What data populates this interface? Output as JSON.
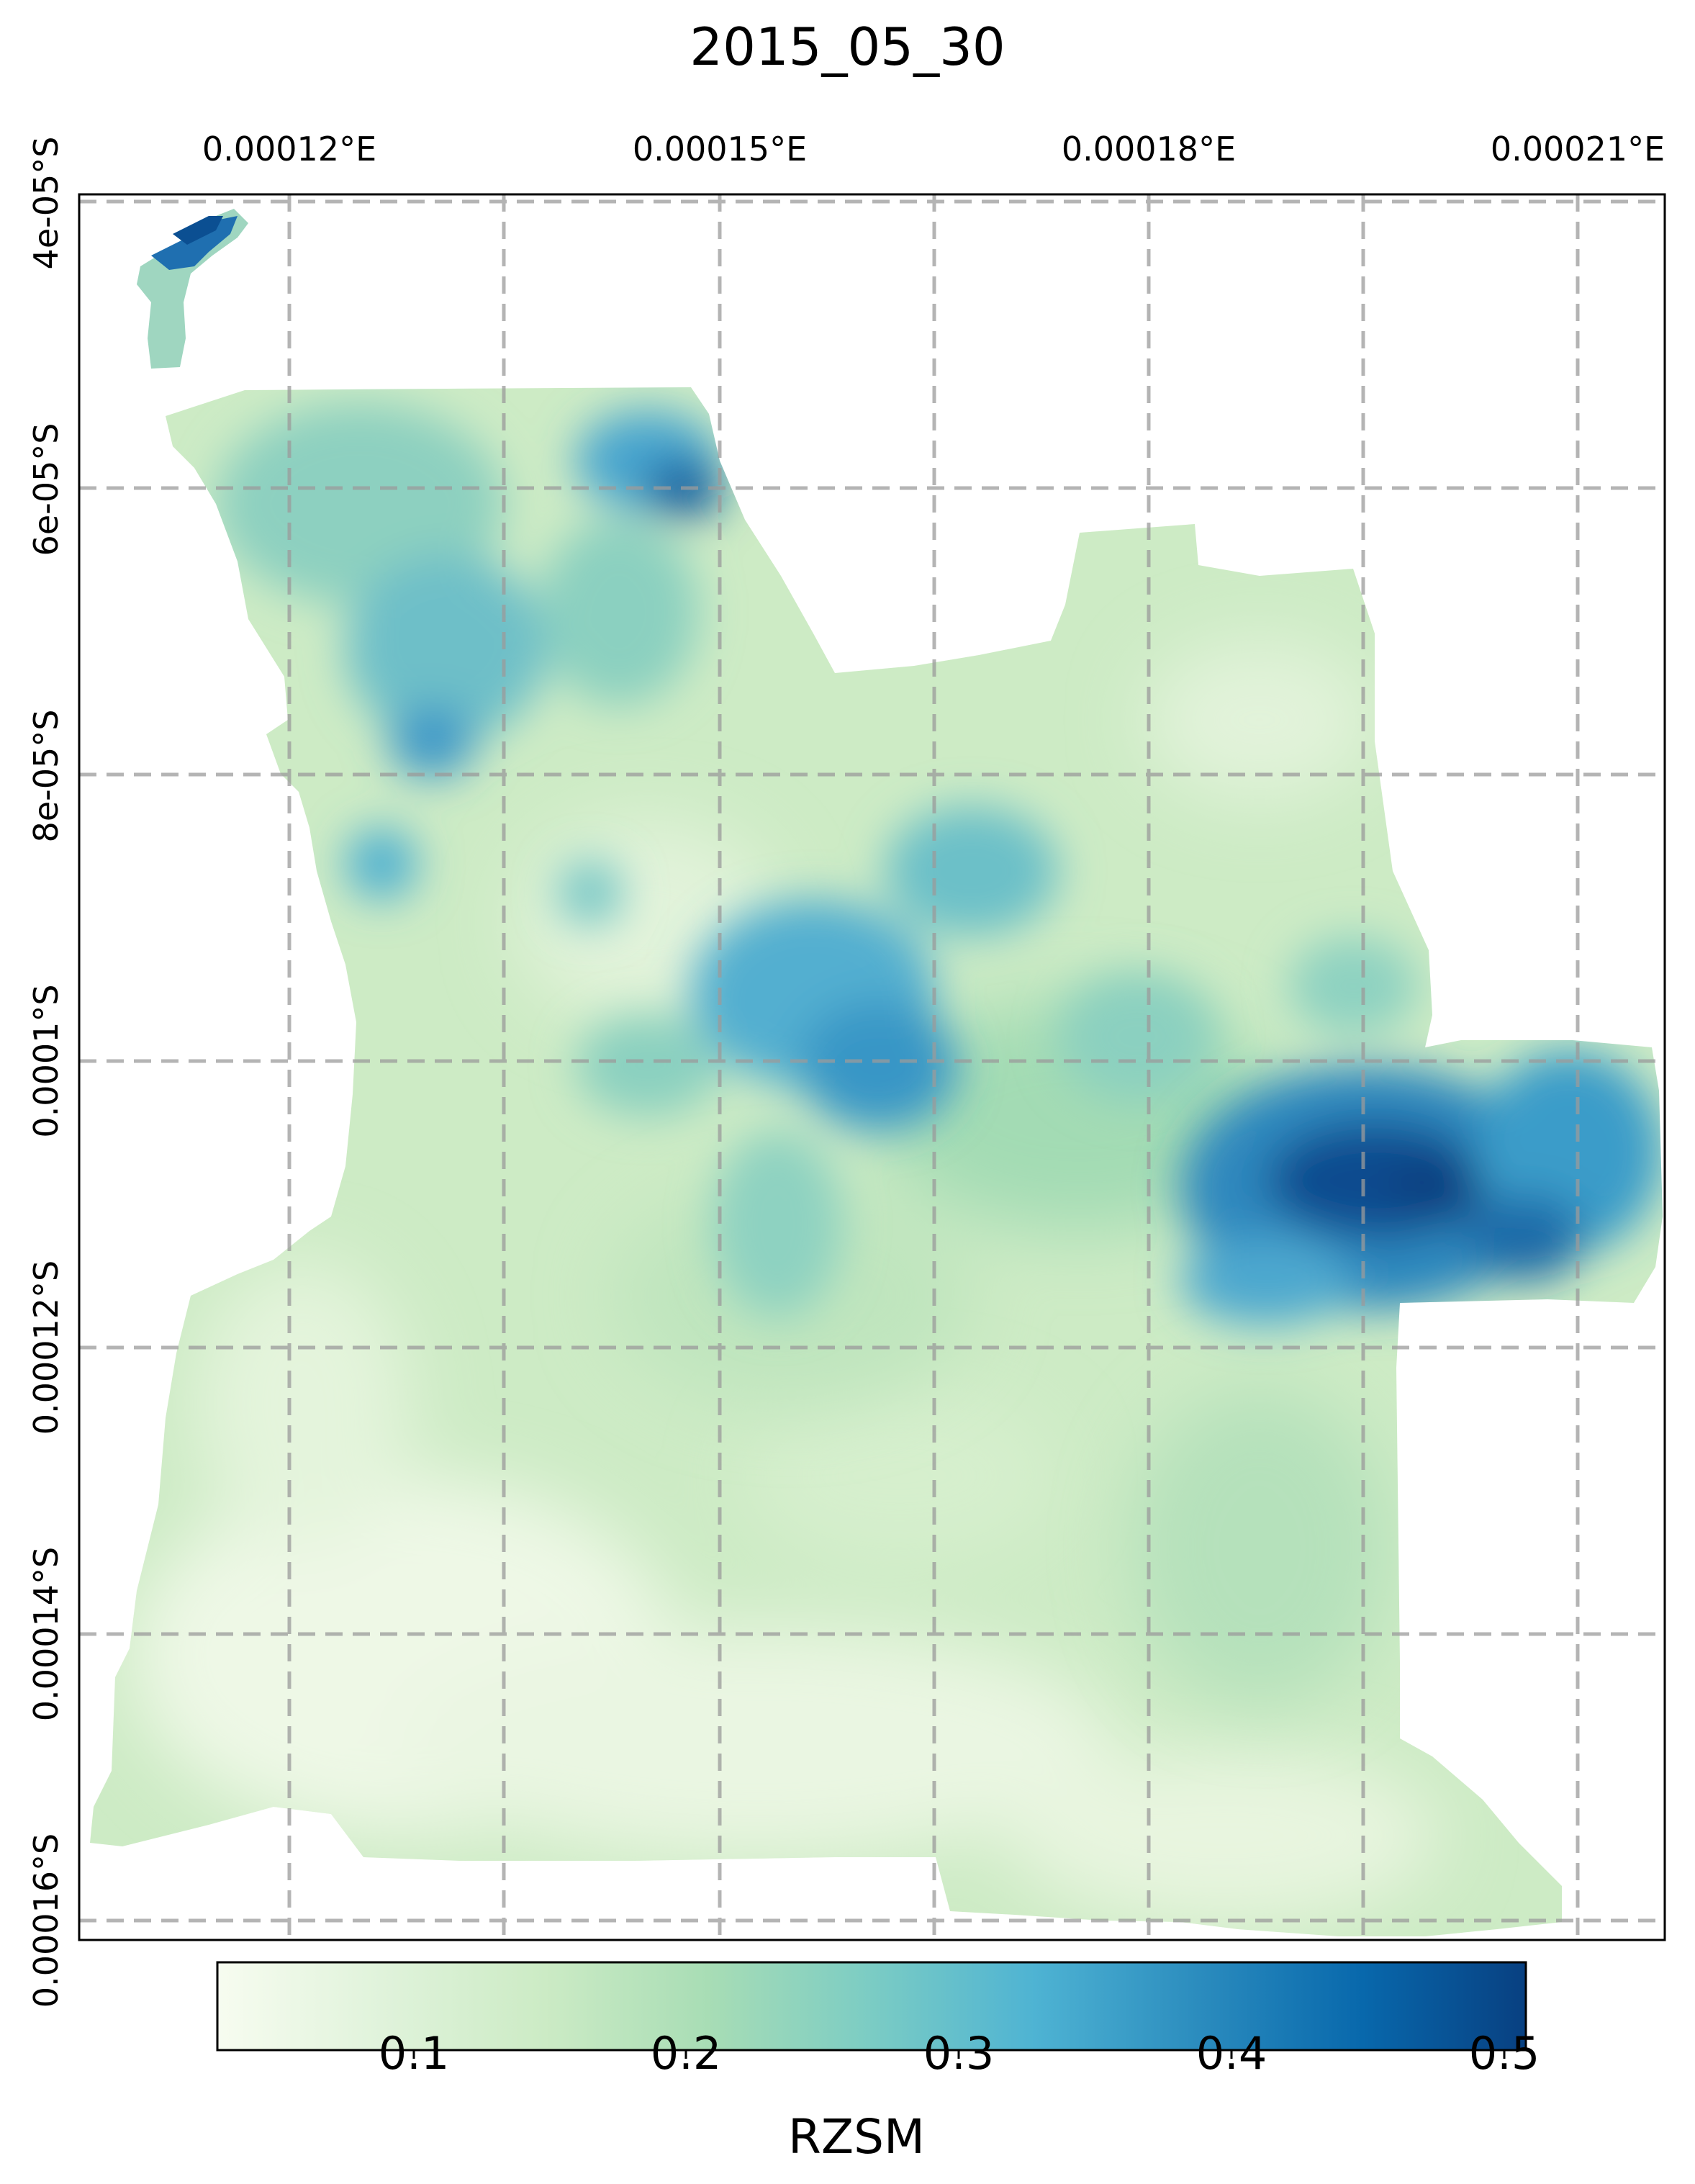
{
  "title": "2015_05_30",
  "map": {
    "x_ticks": [
      "0.00012°E",
      "0.00015°E",
      "0.00018°E",
      "0.00021°E"
    ],
    "y_ticks": [
      "4e-05°S",
      "6e-05°S",
      "8e-05°S",
      "0.0001°S",
      "0.00012°S",
      "0.00014°S",
      "0.00016°S"
    ],
    "gridlines": true,
    "region_fill_color": "#cdebc5",
    "high_moisture_color": "#084081",
    "colormap": [
      "#f7fcf0",
      "#e0f3db",
      "#ccebc5",
      "#a8ddb5",
      "#7bccc4",
      "#4eb3d3",
      "#2b8cbe",
      "#0868ac",
      "#084081"
    ]
  },
  "colorbar": {
    "label": "RZSM",
    "ticks": [
      "0.1",
      "0.2",
      "0.3",
      "0.4",
      "0.5"
    ],
    "range": [
      0.03,
      0.51
    ]
  }
}
